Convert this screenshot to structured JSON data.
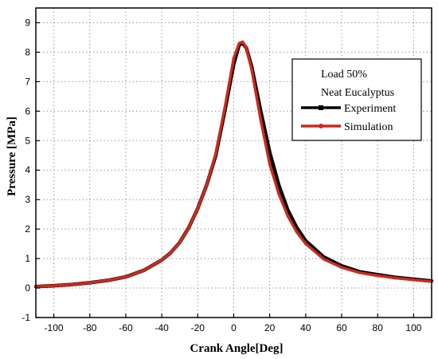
{
  "chart_data": {
    "type": "line",
    "xlabel": "Crank Angle[Deg]",
    "ylabel": "Pressure [MPa]",
    "xlim": [
      -110,
      110
    ],
    "ylim": [
      -1,
      9.5
    ],
    "xticks": [
      -100,
      -80,
      -60,
      -40,
      -20,
      0,
      20,
      40,
      60,
      80,
      100
    ],
    "yticks": [
      -1,
      0,
      1,
      2,
      3,
      4,
      5,
      6,
      7,
      8,
      9
    ],
    "grid": true,
    "legend": {
      "placement": "top-right",
      "title_lines": [
        "Load 50%",
        "Neat Eucalyptus"
      ]
    },
    "series": [
      {
        "name": "Experiment",
        "color": "#000000",
        "x": [
          -110,
          -100,
          -90,
          -80,
          -70,
          -60,
          -50,
          -40,
          -35,
          -30,
          -25,
          -20,
          -15,
          -10,
          -5,
          0,
          3,
          5,
          7,
          10,
          15,
          20,
          25,
          30,
          35,
          40,
          50,
          60,
          70,
          80,
          90,
          100,
          110
        ],
        "y": [
          0.05,
          0.08,
          0.12,
          0.18,
          0.26,
          0.38,
          0.6,
          0.95,
          1.2,
          1.55,
          2.05,
          2.7,
          3.5,
          4.5,
          6.0,
          7.6,
          8.25,
          8.3,
          8.15,
          7.5,
          6.0,
          4.6,
          3.5,
          2.65,
          2.05,
          1.6,
          1.05,
          0.75,
          0.55,
          0.45,
          0.36,
          0.3,
          0.24
        ]
      },
      {
        "name": "Simulation",
        "color": "#cc2a1e",
        "x": [
          -110,
          -100,
          -90,
          -80,
          -70,
          -60,
          -50,
          -40,
          -35,
          -30,
          -25,
          -20,
          -15,
          -10,
          -5,
          0,
          3,
          5,
          7,
          10,
          15,
          20,
          25,
          30,
          35,
          40,
          50,
          60,
          70,
          80,
          90,
          100,
          110
        ],
        "y": [
          0.05,
          0.08,
          0.12,
          0.18,
          0.26,
          0.38,
          0.6,
          0.95,
          1.2,
          1.55,
          2.05,
          2.7,
          3.5,
          4.55,
          6.1,
          7.8,
          8.3,
          8.35,
          8.15,
          7.4,
          5.7,
          4.2,
          3.2,
          2.45,
          1.9,
          1.5,
          0.98,
          0.7,
          0.52,
          0.42,
          0.34,
          0.28,
          0.22
        ]
      }
    ]
  }
}
